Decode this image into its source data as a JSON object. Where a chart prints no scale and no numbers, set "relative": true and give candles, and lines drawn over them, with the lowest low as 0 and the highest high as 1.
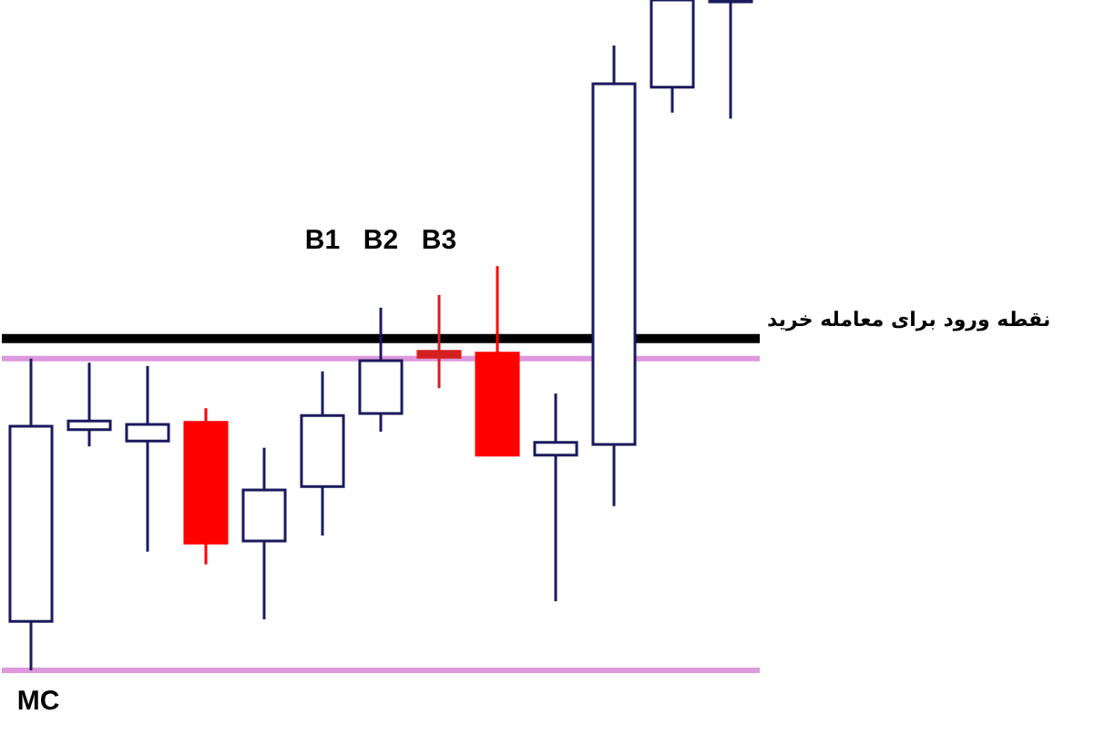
{
  "chart_data": {
    "type": "candlestick",
    "relative": true,
    "categories": [
      null,
      null,
      null,
      null,
      null,
      null,
      null,
      null,
      null,
      null,
      null,
      null,
      null
    ],
    "ohlc": [
      [
        0.073,
        0.465,
        0,
        0.364
      ],
      [
        0.359,
        0.459,
        0.334,
        0.372
      ],
      [
        0.342,
        0.454,
        0.177,
        0.367
      ],
      [
        0.37,
        0.391,
        0.158,
        0.19
      ],
      [
        0.193,
        0.332,
        0.076,
        0.269
      ],
      [
        0.274,
        0.446,
        0.201,
        0.38
      ],
      [
        0.383,
        0.541,
        0.356,
        0.462
      ],
      [
        0.476,
        0.56,
        0.421,
        0.467
      ],
      [
        0.473,
        0.603,
        0.321,
        0.321
      ],
      [
        0.321,
        0.413,
        0.103,
        0.34
      ],
      [
        0.337,
        0.932,
        0.245,
        0.875
      ],
      [
        0.87,
        1,
        0.832,
        1
      ],
      [
        1,
        1,
        0.823,
        1
      ]
    ],
    "colors": [
      "#ffffff",
      "#ffffff",
      "#ffffff",
      "#ff0000",
      "#ffffff",
      "#ffffff",
      "#ffffff",
      "#d42020",
      "#ff0000",
      "#ffffff",
      "#ffffff",
      "#ffffff",
      "#ffffff"
    ],
    "ref_lines": [
      {
        "axis": "y",
        "value": 0.495,
        "label": "نقطه ورود برای معامله خرید",
        "color": "#000000"
      },
      {
        "axis": "y",
        "value": 0.465,
        "label": null,
        "color": "#dd99dd"
      },
      {
        "axis": "y",
        "value": 0,
        "label": null,
        "color": "#dd99dd"
      }
    ],
    "annotations": [
      "MC",
      "B1",
      "B2",
      "B3"
    ],
    "legend": false
  }
}
